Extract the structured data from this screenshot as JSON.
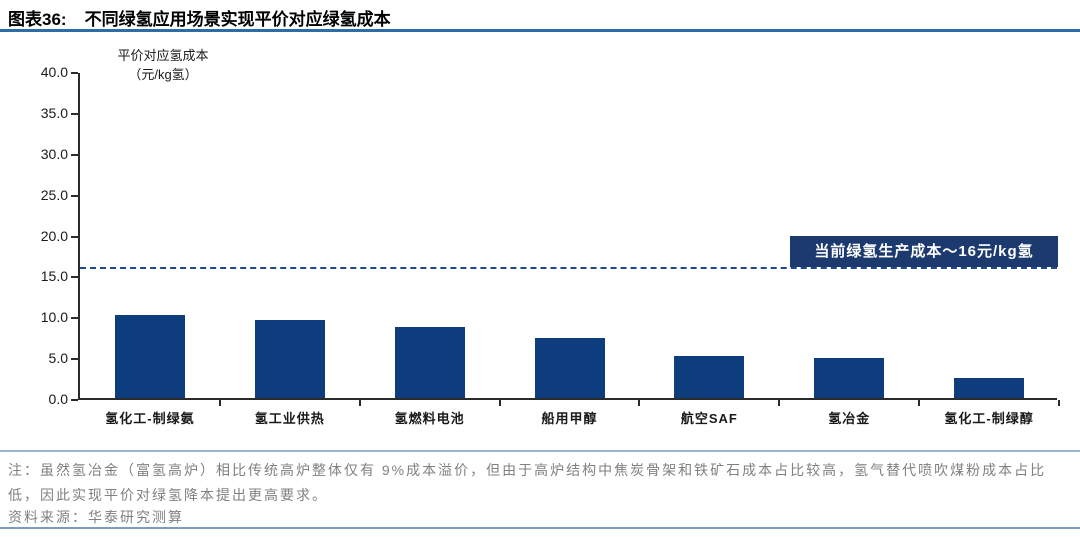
{
  "page": {
    "title_label": "图表36:",
    "title_text": "不同绿氢应用场景实现平价对应绿氢成本",
    "note": "注：虽然氢冶金（富氢高炉）相比传统高炉整体仅有 9%成本溢价，但由于高炉结构中焦炭骨架和铁矿石成本占比较高，氢气替代喷吹煤粉成本占比低，因此实现平价对绿氢降本提出更高要求。",
    "source": "资料来源：华泰研究测算"
  },
  "chart_data": {
    "type": "bar",
    "title": "不同绿氢应用场景实现平价对应绿氢成本",
    "ylabel_lines": [
      "平价对应氢成本",
      "（元/kg氢）"
    ],
    "categories": [
      "氢化工-制绿氨",
      "氢工业供热",
      "氢燃料电池",
      "船用甲醇",
      "航空SAF",
      "氢冶金",
      "氢化工-制绿醇"
    ],
    "values": [
      10.2,
      9.5,
      8.7,
      7.4,
      5.2,
      4.9,
      2.5
    ],
    "ylim": [
      0,
      40
    ],
    "ytick_step": 5,
    "ytick_labels": [
      "0.0",
      "5.0",
      "10.0",
      "15.0",
      "20.0",
      "25.0",
      "30.0",
      "35.0",
      "40.0"
    ],
    "reference_line": {
      "value": 16,
      "label": "当前绿氢生产成本～16元/kg氢"
    },
    "grid": false,
    "legend": false,
    "colors": {
      "bar": "#0e3d7d",
      "annotation_bg": "#1c3a6e",
      "dashed_line": "#1c4a8c",
      "title_rule": "#2f6ba7",
      "note_text": "#808080"
    }
  }
}
